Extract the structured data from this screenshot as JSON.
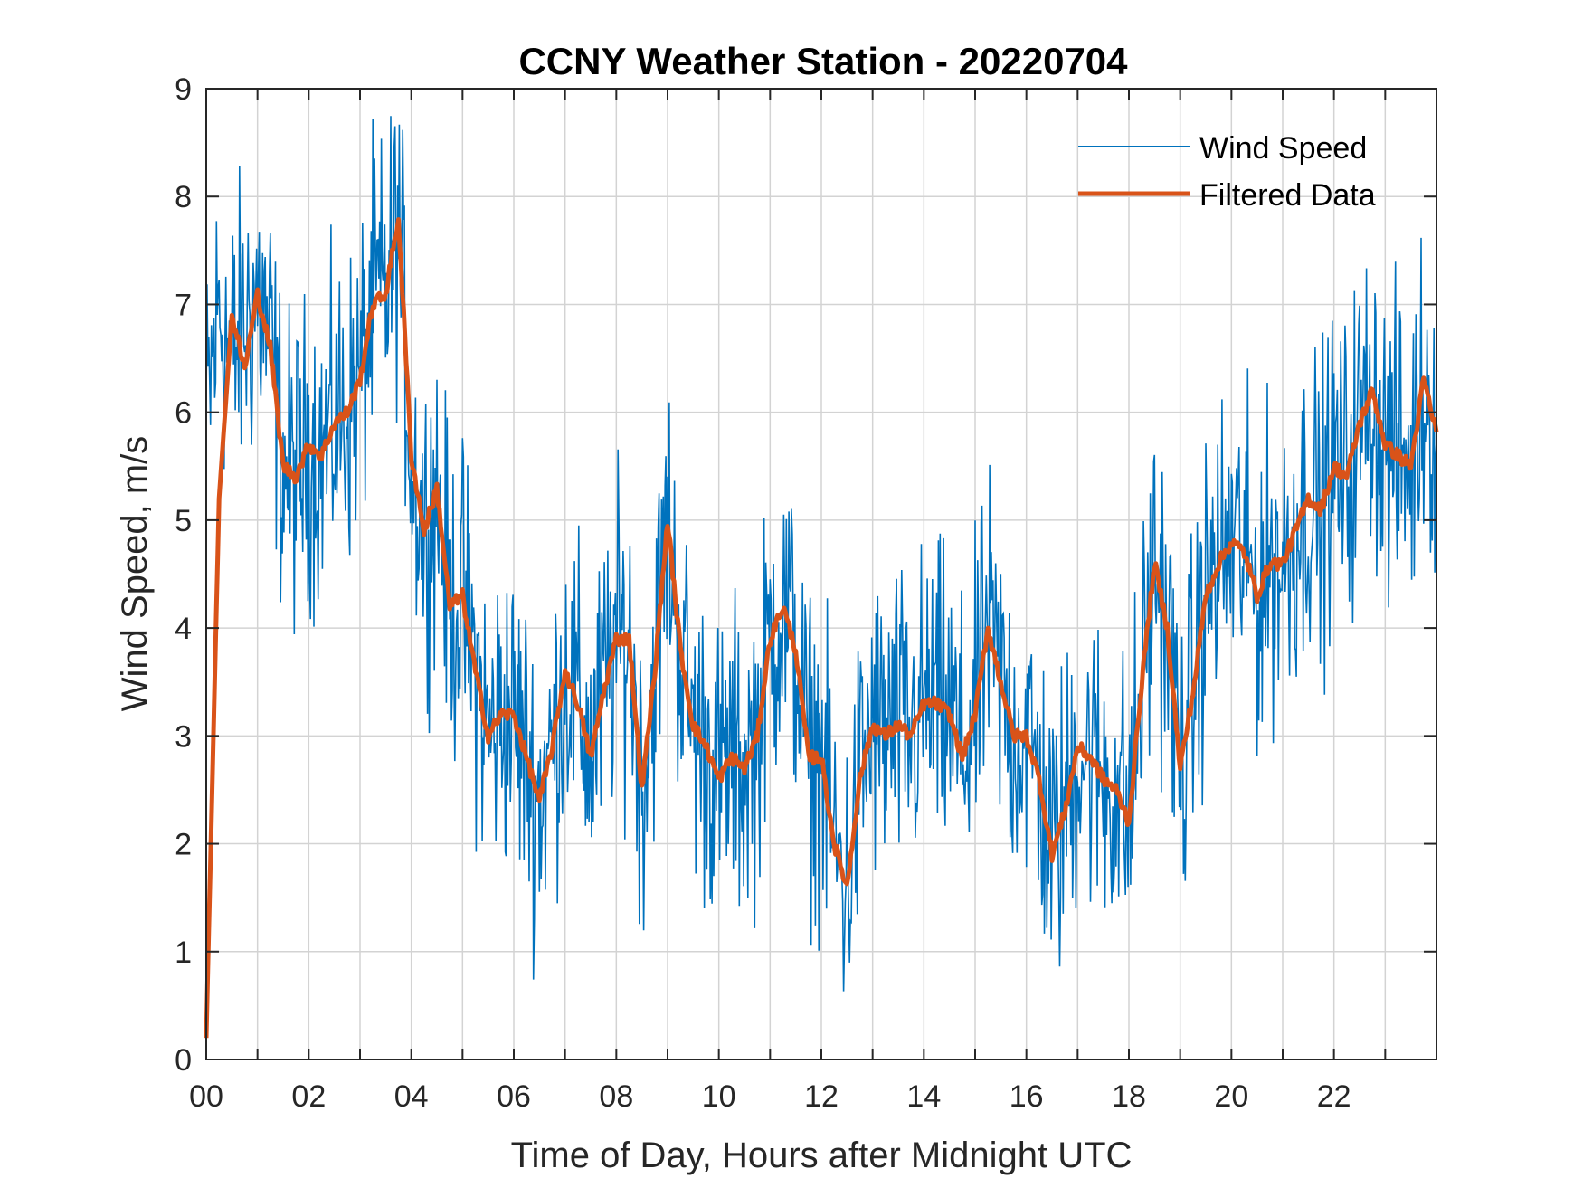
{
  "chart_data": {
    "type": "line",
    "title": "CCNY Weather Station - 20220704",
    "xlabel": "Time of Day, Hours after Midnight UTC",
    "ylabel": "Wind Speed, m/s",
    "xlim": [
      0,
      24
    ],
    "ylim": [
      0,
      9
    ],
    "grid": true,
    "legend_position": "top-right",
    "x_ticks": [
      0,
      2,
      4,
      6,
      8,
      10,
      12,
      14,
      16,
      18,
      20,
      22
    ],
    "x_tick_labels": [
      "00",
      "02",
      "04",
      "06",
      "08",
      "10",
      "12",
      "14",
      "16",
      "18",
      "20",
      "22"
    ],
    "x_minor_grid_step": 1,
    "y_ticks": [
      0,
      1,
      2,
      3,
      4,
      5,
      6,
      7,
      8,
      9
    ],
    "y_tick_labels": [
      "0",
      "1",
      "2",
      "3",
      "4",
      "5",
      "6",
      "7",
      "8",
      "9"
    ],
    "series": [
      {
        "name": "Wind Speed",
        "color": "#0072BD",
        "note_type": "noisy_raw",
        "x": [
          0.0,
          0.25,
          0.5,
          0.75,
          1.0,
          1.25,
          1.5,
          1.75,
          2.0,
          2.25,
          2.5,
          2.75,
          3.0,
          3.25,
          3.5,
          3.75,
          4.0,
          4.25,
          4.5,
          4.75,
          5.0,
          5.25,
          5.5,
          5.75,
          6.0,
          6.25,
          6.5,
          6.75,
          7.0,
          7.25,
          7.5,
          7.75,
          8.0,
          8.25,
          8.5,
          8.75,
          9.0,
          9.25,
          9.5,
          9.75,
          10.0,
          10.25,
          10.5,
          10.75,
          11.0,
          11.25,
          11.5,
          11.75,
          12.0,
          12.25,
          12.5,
          12.75,
          13.0,
          13.25,
          13.5,
          13.75,
          14.0,
          14.25,
          14.5,
          14.75,
          15.0,
          15.25,
          15.5,
          15.75,
          16.0,
          16.25,
          16.5,
          16.75,
          17.0,
          17.25,
          17.5,
          17.75,
          18.0,
          18.25,
          18.5,
          18.75,
          19.0,
          19.25,
          19.5,
          19.75,
          20.0,
          20.25,
          20.5,
          20.75,
          21.0,
          21.25,
          21.5,
          21.75,
          22.0,
          22.25,
          22.5,
          22.75,
          23.0,
          23.25,
          23.5,
          23.75,
          24.0
        ],
        "y": [
          5.9,
          7.0,
          6.5,
          6.8,
          7.1,
          6.6,
          5.5,
          5.4,
          5.7,
          5.6,
          5.9,
          6.0,
          6.3,
          7.0,
          7.1,
          7.7,
          5.6,
          4.9,
          5.3,
          4.2,
          4.3,
          3.6,
          3.0,
          3.2,
          3.2,
          2.8,
          2.4,
          2.9,
          3.6,
          3.3,
          2.8,
          3.4,
          3.9,
          3.9,
          2.5,
          3.6,
          5.0,
          3.8,
          3.1,
          2.9,
          2.6,
          2.8,
          2.7,
          3.0,
          3.9,
          4.2,
          3.8,
          2.8,
          2.8,
          2.0,
          1.6,
          2.6,
          3.1,
          3.0,
          3.1,
          3.0,
          3.3,
          3.3,
          3.2,
          2.8,
          3.2,
          4.0,
          3.5,
          3.0,
          3.0,
          2.6,
          1.9,
          2.3,
          2.9,
          2.8,
          2.6,
          2.5,
          2.2,
          3.5,
          4.6,
          4.0,
          2.7,
          3.4,
          4.3,
          4.6,
          4.8,
          4.7,
          4.3,
          4.6,
          4.6,
          4.9,
          5.2,
          5.1,
          5.5,
          5.4,
          5.9,
          6.2,
          5.7,
          5.6,
          5.5,
          6.3,
          5.9
        ],
        "noise_amplitude": 1.1,
        "samples": 1440
      },
      {
        "name": "Filtered Data",
        "color": "#D95319",
        "x": [
          0.0,
          0.25,
          0.5,
          0.75,
          1.0,
          1.25,
          1.5,
          1.75,
          2.0,
          2.25,
          2.5,
          2.75,
          3.0,
          3.25,
          3.5,
          3.75,
          4.0,
          4.25,
          4.5,
          4.75,
          5.0,
          5.25,
          5.5,
          5.75,
          6.0,
          6.25,
          6.5,
          6.75,
          7.0,
          7.25,
          7.5,
          7.75,
          8.0,
          8.25,
          8.5,
          8.75,
          9.0,
          9.25,
          9.5,
          9.75,
          10.0,
          10.25,
          10.5,
          10.75,
          11.0,
          11.25,
          11.5,
          11.75,
          12.0,
          12.25,
          12.5,
          12.75,
          13.0,
          13.25,
          13.5,
          13.75,
          14.0,
          14.25,
          14.5,
          14.75,
          15.0,
          15.25,
          15.5,
          15.75,
          16.0,
          16.25,
          16.5,
          16.75,
          17.0,
          17.25,
          17.5,
          17.75,
          18.0,
          18.25,
          18.5,
          18.75,
          19.0,
          19.25,
          19.5,
          19.75,
          20.0,
          20.25,
          20.5,
          20.75,
          21.0,
          21.25,
          21.5,
          21.75,
          22.0,
          22.25,
          22.5,
          22.75,
          23.0,
          23.25,
          23.5,
          23.75,
          24.0
        ],
        "y": [
          0.2,
          5.2,
          6.9,
          6.4,
          7.1,
          6.6,
          5.5,
          5.4,
          5.7,
          5.6,
          5.9,
          6.0,
          6.3,
          7.0,
          7.1,
          7.8,
          5.6,
          4.9,
          5.3,
          4.2,
          4.3,
          3.6,
          3.0,
          3.2,
          3.2,
          2.8,
          2.4,
          2.9,
          3.6,
          3.3,
          2.8,
          3.4,
          3.9,
          3.9,
          2.5,
          3.6,
          5.0,
          3.8,
          3.1,
          2.9,
          2.6,
          2.8,
          2.7,
          3.0,
          3.9,
          4.2,
          3.8,
          2.8,
          2.8,
          2.0,
          1.6,
          2.6,
          3.1,
          3.0,
          3.1,
          3.0,
          3.3,
          3.3,
          3.2,
          2.8,
          3.2,
          4.0,
          3.5,
          3.0,
          3.0,
          2.6,
          1.9,
          2.3,
          2.9,
          2.8,
          2.6,
          2.5,
          2.2,
          3.5,
          4.6,
          4.0,
          2.7,
          3.4,
          4.3,
          4.6,
          4.8,
          4.7,
          4.3,
          4.6,
          4.6,
          4.9,
          5.2,
          5.1,
          5.5,
          5.4,
          5.9,
          6.2,
          5.7,
          5.6,
          5.5,
          6.3,
          5.8
        ]
      }
    ]
  }
}
